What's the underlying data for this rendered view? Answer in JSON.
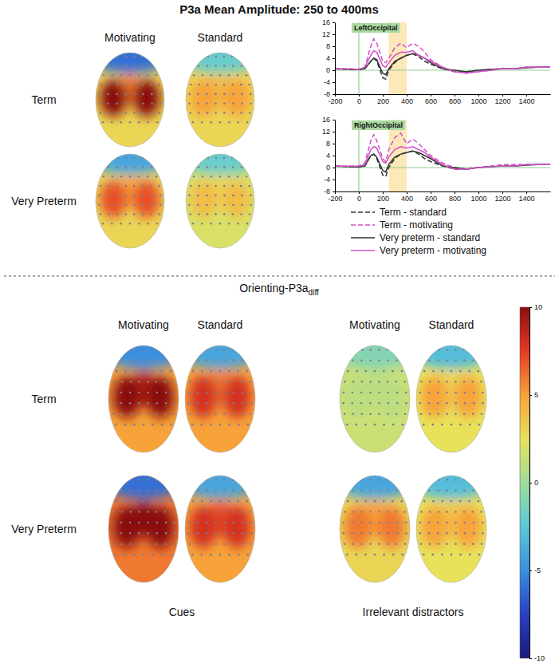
{
  "chart_data": [
    {
      "type": "topomap",
      "title": "P3a Mean Amplitude: 250 to 400ms",
      "rows": [
        "Term",
        "Very Preterm"
      ],
      "groups": [
        {
          "columns": [
            "Motivating",
            "Standard"
          ],
          "maps": [
            [
              {
                "frontal": -6,
                "left": 10,
                "midline": 6,
                "right": 10,
                "inferior": 3
              },
              {
                "frontal": -2,
                "left": 5,
                "midline": 4,
                "right": 5,
                "inferior": 3
              }
            ],
            [
              {
                "frontal": -4,
                "left": 7,
                "midline": 5,
                "right": 7,
                "inferior": 3
              },
              {
                "frontal": -2,
                "left": 4,
                "midline": 3,
                "right": 4,
                "inferior": 2
              }
            ]
          ]
        }
      ]
    },
    {
      "type": "line",
      "title": "LeftOccipital",
      "x": [
        -200,
        -100,
        0,
        50,
        100,
        125,
        150,
        200,
        225,
        250,
        300,
        350,
        400,
        450,
        500,
        550,
        600,
        700,
        800,
        900,
        1000,
        1100,
        1200,
        1300,
        1400,
        1500,
        1600
      ],
      "xlim": [
        -200,
        1600
      ],
      "xticks": [
        -200,
        0,
        200,
        400,
        600,
        800,
        1000,
        1200,
        1400
      ],
      "ylim": [
        -8,
        16
      ],
      "yticks": [
        -8,
        -4,
        0,
        4,
        8,
        12,
        16
      ],
      "hlines": [
        0
      ],
      "vlines": [
        0
      ],
      "highlight": [
        250,
        400
      ],
      "series": [
        {
          "color": "#333333",
          "line_style": "dashed",
          "values": [
            0.5,
            0.3,
            0.2,
            0.5,
            3,
            4,
            3,
            -2.5,
            -3,
            0,
            2.5,
            4,
            5,
            5.5,
            4.5,
            3,
            2,
            0.5,
            -0.5,
            -0.5,
            0,
            0.3,
            0.5,
            0.5,
            1,
            1,
            1
          ]
        },
        {
          "color": "#d24fc8",
          "line_style": "dashed",
          "values": [
            0.5,
            0.5,
            0.3,
            1,
            8,
            10.5,
            9,
            3,
            2.5,
            4,
            7.5,
            9,
            7.5,
            9,
            8,
            6,
            3.5,
            1,
            -0.5,
            -1,
            -0.5,
            0,
            0.5,
            0.5,
            1,
            1,
            1
          ]
        },
        {
          "color": "#333333",
          "line_style": "solid",
          "values": [
            0.5,
            0.3,
            0.2,
            0.5,
            3,
            4,
            3.5,
            -1,
            -1.5,
            0.5,
            3,
            4,
            5,
            5.5,
            5,
            4,
            2.5,
            0.5,
            0,
            -0.5,
            0,
            0.3,
            0.5,
            0.5,
            0.8,
            1,
            1
          ]
        },
        {
          "color": "#d24fc8",
          "line_style": "solid",
          "values": [
            0.5,
            0.5,
            0.3,
            1,
            5,
            6.5,
            6,
            1.5,
            1,
            2.5,
            5,
            6,
            6,
            6.5,
            5,
            4,
            3,
            1,
            -0.5,
            -1,
            -0.5,
            0,
            0.5,
            0.5,
            1,
            1,
            1
          ]
        }
      ]
    },
    {
      "type": "line",
      "title": "RightOccipital",
      "x": [
        -200,
        -100,
        0,
        50,
        100,
        125,
        150,
        200,
        225,
        250,
        300,
        350,
        400,
        450,
        500,
        550,
        600,
        700,
        800,
        900,
        1000,
        1100,
        1200,
        1300,
        1400,
        1500,
        1600
      ],
      "xlim": [
        -200,
        1600
      ],
      "xticks": [
        -200,
        0,
        200,
        400,
        600,
        800,
        1000,
        1200,
        1400
      ],
      "ylim": [
        -8,
        16
      ],
      "yticks": [
        -8,
        -4,
        0,
        4,
        8,
        12,
        16
      ],
      "hlines": [
        0
      ],
      "vlines": [
        0
      ],
      "highlight": [
        250,
        400
      ],
      "legend": "bottom",
      "series": [
        {
          "name": "Term - standard",
          "color": "#333333",
          "line_style": "dashed",
          "values": [
            0.5,
            0.3,
            0.2,
            0.5,
            4,
            4.5,
            3,
            -2.5,
            -3,
            0,
            3,
            4.5,
            5,
            5.5,
            4.5,
            3,
            2,
            0.5,
            -0.5,
            -0.5,
            0,
            0.3,
            0.5,
            0.5,
            1,
            1,
            1
          ]
        },
        {
          "name": "Term - motivating",
          "color": "#d24fc8",
          "line_style": "dashed",
          "values": [
            0.5,
            0.5,
            0.5,
            1.5,
            9,
            11,
            9,
            3,
            2,
            6,
            10,
            11.5,
            8,
            9.5,
            8,
            6,
            4,
            1.5,
            0,
            -0.5,
            0,
            0.5,
            1,
            1,
            1,
            1,
            1
          ]
        },
        {
          "name": "Very preterm - standard",
          "color": "#333333",
          "line_style": "solid",
          "values": [
            0.5,
            0.3,
            0.2,
            0.5,
            4,
            4.5,
            3.5,
            -1,
            -1.5,
            1,
            3.5,
            4.5,
            5,
            5.5,
            5,
            4,
            3,
            0.5,
            0,
            -0.5,
            0,
            0.3,
            0.5,
            0.5,
            0.8,
            1,
            1
          ]
        },
        {
          "name": "Very preterm - motivating",
          "color": "#d24fc8",
          "line_style": "solid",
          "values": [
            0.5,
            0.5,
            0.5,
            1,
            6,
            7,
            6.5,
            2,
            1.5,
            3.5,
            6,
            7,
            6.5,
            7,
            6,
            5,
            3.5,
            1,
            -0.5,
            -0.5,
            0,
            0.3,
            0.5,
            0.5,
            1,
            1,
            1
          ]
        }
      ]
    },
    {
      "type": "topomap",
      "title": "Orienting-P3a",
      "title_subscript": "diff",
      "rows": [
        "Term",
        "Very Preterm"
      ],
      "groups": [
        {
          "name": "Cues",
          "columns": [
            "Motivating",
            "Standard"
          ],
          "maps": [
            [
              {
                "frontal": -5,
                "left": 10,
                "midline": 9,
                "right": 10,
                "inferior": 5
              },
              {
                "frontal": -4,
                "left": 8,
                "midline": 6,
                "right": 8,
                "inferior": 5
              }
            ],
            [
              {
                "frontal": -6,
                "left": 10,
                "midline": 10,
                "right": 10,
                "inferior": 6
              },
              {
                "frontal": -4,
                "left": 8,
                "midline": 7,
                "right": 8,
                "inferior": 5
              }
            ]
          ]
        },
        {
          "name": "Irrelevant distractors",
          "columns": [
            "Motivating",
            "Standard"
          ],
          "maps": [
            [
              {
                "frontal": -1,
                "left": 1,
                "midline": 1,
                "right": 1,
                "inferior": 1.5
              },
              {
                "frontal": -3,
                "left": 5,
                "midline": 3,
                "right": 5,
                "inferior": 2.5
              }
            ],
            [
              {
                "frontal": -4,
                "left": 6,
                "midline": 5,
                "right": 6,
                "inferior": 3
              },
              {
                "frontal": -3,
                "left": 5,
                "midline": 3.5,
                "right": 5,
                "inferior": 2.5
              }
            ]
          ]
        }
      ]
    }
  ],
  "color_bar": {
    "range": [
      -10,
      10
    ],
    "ticks": [
      -10,
      -5,
      0,
      5,
      10
    ]
  }
}
